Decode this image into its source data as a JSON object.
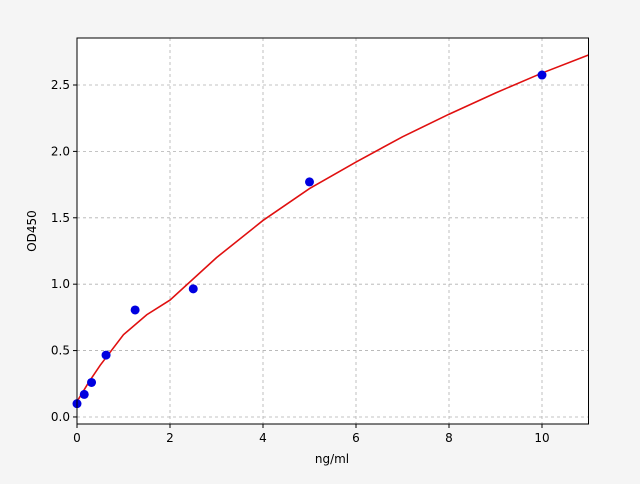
{
  "chart_data": {
    "type": "scatter",
    "title": "",
    "xlabel": "ng/ml",
    "ylabel": "OD450",
    "xlim": [
      0,
      11
    ],
    "ylim": [
      -0.053,
      2.854
    ],
    "xticks": [
      0,
      2,
      4,
      6,
      8,
      10
    ],
    "yticks": [
      0.0,
      0.5,
      1.0,
      1.5,
      2.0,
      2.5
    ],
    "xtick_labels": [
      "0",
      "2",
      "4",
      "6",
      "8",
      "10"
    ],
    "ytick_labels": [
      "0.0",
      "0.5",
      "1.0",
      "1.5",
      "2.0",
      "2.5"
    ],
    "grid": true,
    "points": {
      "color": "#0000e0",
      "x": [
        0,
        0.156,
        0.3125,
        0.625,
        1.25,
        2.5,
        5,
        10
      ],
      "y": [
        0.1,
        0.17,
        0.26,
        0.466,
        0.806,
        0.965,
        1.77,
        2.575
      ]
    },
    "fit_curve": {
      "color": "#e01010",
      "x": [
        0,
        0.25,
        0.5,
        1,
        1.5,
        2,
        3,
        4,
        5,
        6,
        7,
        8,
        9,
        10,
        11
      ],
      "y": [
        0.116,
        0.26,
        0.39,
        0.62,
        0.77,
        0.88,
        1.2,
        1.48,
        1.72,
        1.92,
        2.11,
        2.28,
        2.44,
        2.59,
        2.726
      ]
    }
  }
}
